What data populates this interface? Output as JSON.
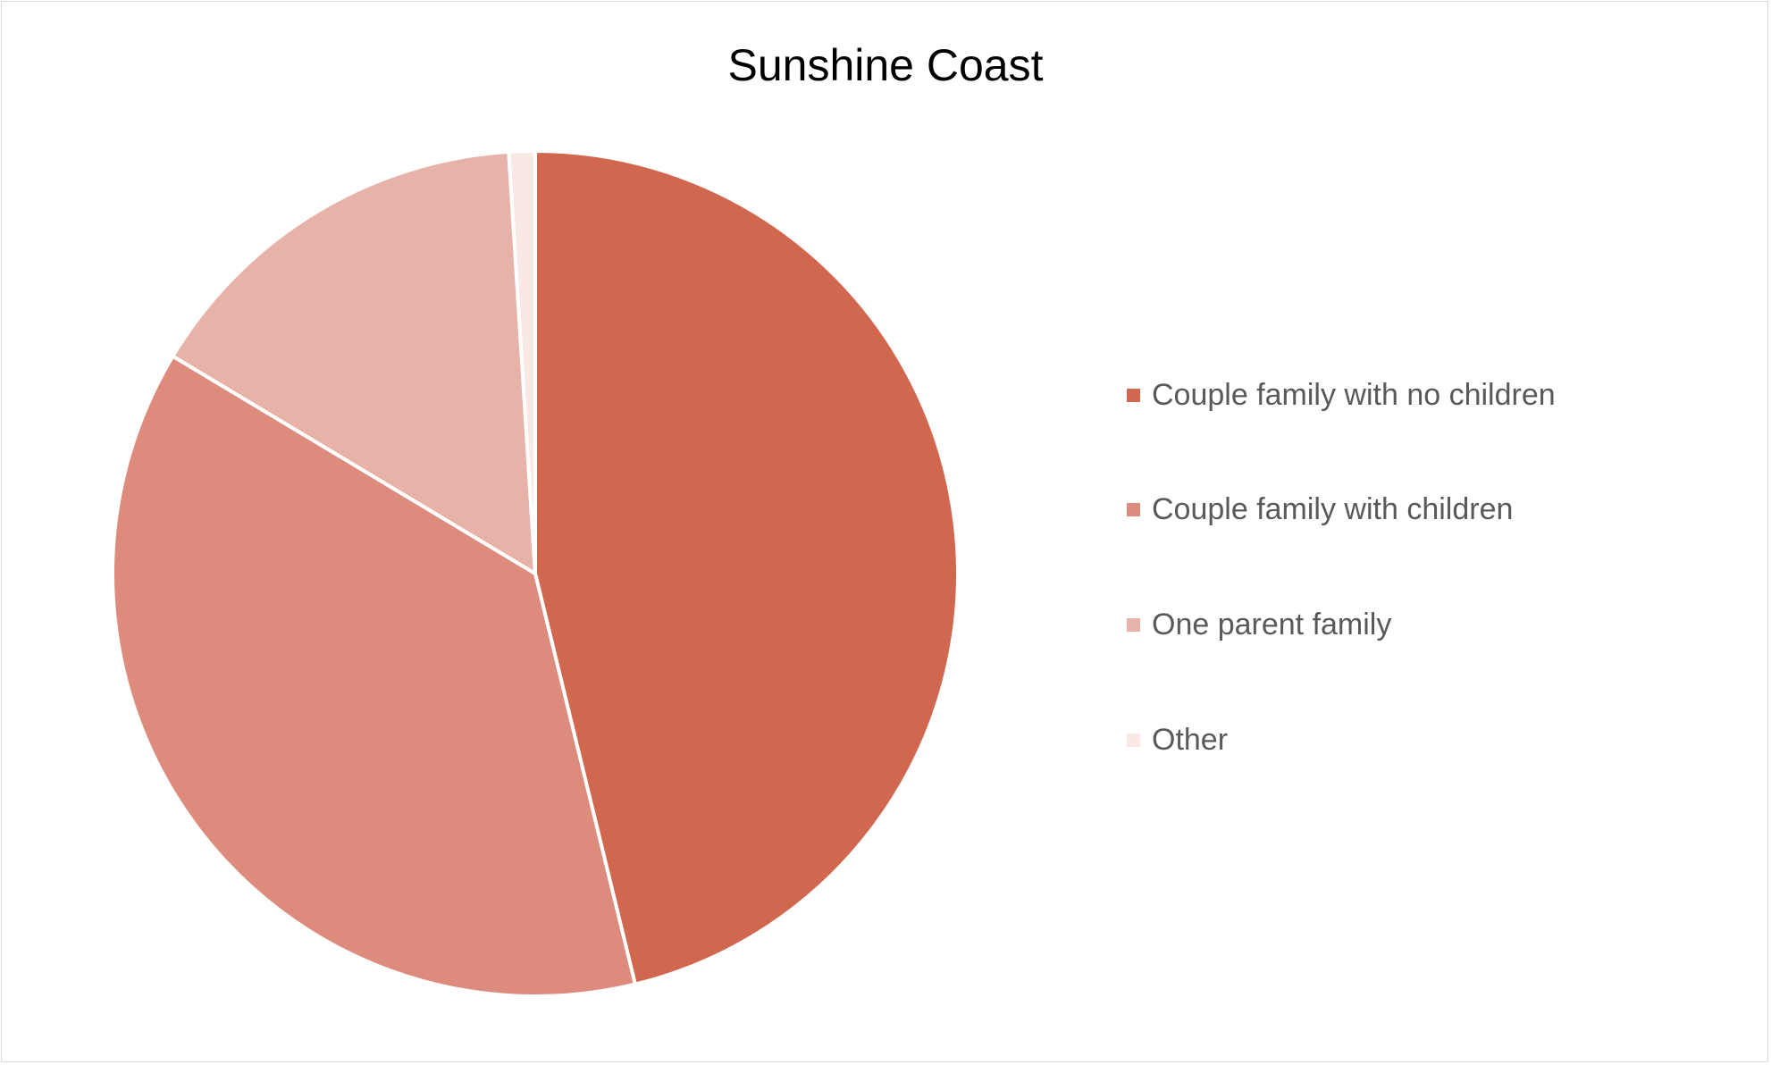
{
  "chart_data": {
    "type": "pie",
    "title": "Sunshine Coast",
    "categories": [
      "Couple family with no children",
      "Couple family with children",
      "One parent family",
      "Other"
    ],
    "values": [
      46.2,
      37.4,
      15.4,
      1.0
    ],
    "colors": [
      "#D2674F",
      "#DC8B7C",
      "#E7B3A9",
      "#F8E9E5"
    ],
    "legend_position": "right",
    "start_angle": "12 o'clock, clockwise"
  }
}
